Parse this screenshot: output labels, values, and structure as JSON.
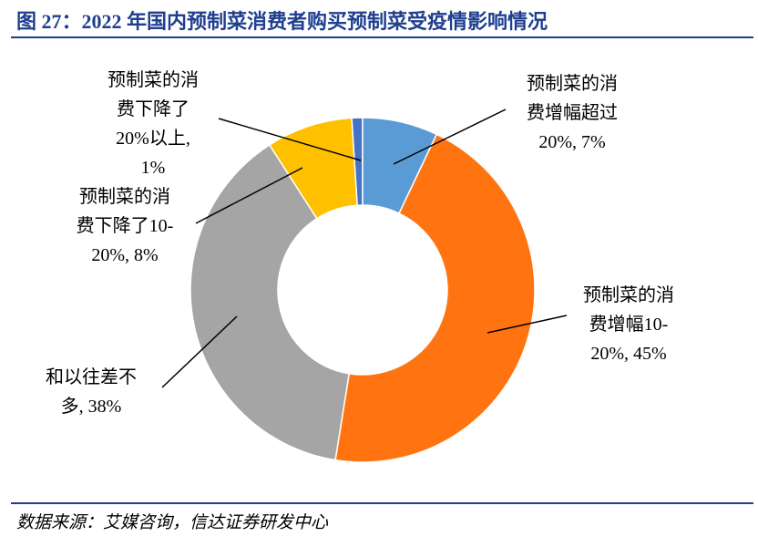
{
  "title": "图 27：2022 年国内预制菜消费者购买预制菜受疫情影响情况",
  "source": "数据来源：艾媒咨询，信达证券研发中心",
  "chart_data": {
    "type": "donut",
    "labels": [
      "预制菜的消费增幅超过20%, 7%",
      "预制菜的消费增幅10-20%, 45%",
      "和以往差不多, 38%",
      "预制菜的消费下降了10-20%, 8%",
      "预制菜的消费下降了20%以上, 1%"
    ],
    "values": [
      7,
      45,
      38,
      8,
      1
    ],
    "colors": [
      "#5b9bd5",
      "#ff7410",
      "#a5a5a5",
      "#ffc000",
      "#4472c4"
    ]
  }
}
